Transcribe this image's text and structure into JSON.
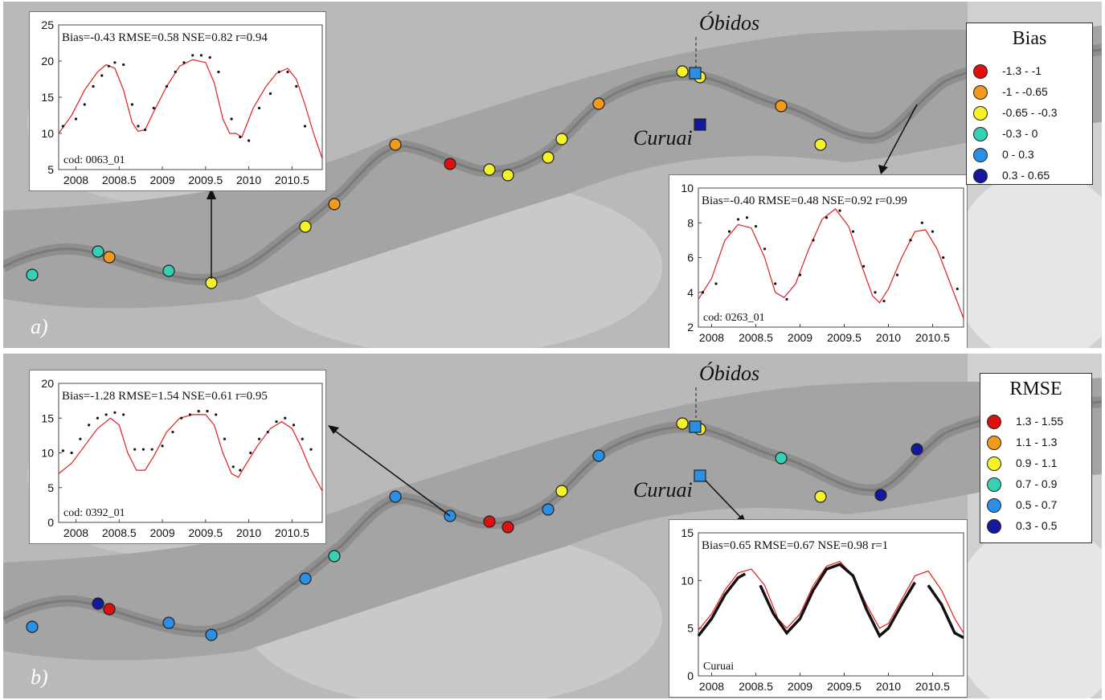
{
  "panels": [
    {
      "id": "a",
      "panel_label": "a)",
      "legend": {
        "title": "Bias",
        "classes": [
          {
            "label": "-1.3 - -1",
            "color": "#e01010"
          },
          {
            "label": "-1 - -0.65",
            "color": "#f39a1c"
          },
          {
            "label": "-0.65 - -0.3",
            "color": "#f5f22a"
          },
          {
            "label": "-0.3 - 0",
            "color": "#36d0b4"
          },
          {
            "label": "0 - 0.3",
            "color": "#2b8fe6"
          },
          {
            "label": "0.3 - 0.65",
            "color": "#14189c"
          }
        ]
      },
      "places": {
        "obidos": "Óbidos",
        "curuai": "Curuai"
      },
      "station_classes": [
        3,
        3,
        1,
        3,
        2,
        2,
        1,
        0,
        1,
        2,
        2,
        2,
        2,
        1,
        2,
        2,
        1,
        2
      ],
      "insets": [
        {
          "stats": "Bias=-0.43 RMSE=0.58 NSE=0.82 r=0.94",
          "code": "cod: 0063_01",
          "chart_data": {
            "type": "line",
            "xlim": [
              2007.8,
              2010.85
            ],
            "ylim": [
              5,
              25
            ],
            "xticks": [
              "2008",
              "2008.5",
              "2009",
              "2009.5",
              "2010",
              "2010.5"
            ],
            "yticks": [
              "5",
              "10",
              "15",
              "20",
              "25"
            ],
            "series": [
              {
                "kind": "line",
                "x": [
                  2007.8,
                  2007.95,
                  2008.1,
                  2008.25,
                  2008.35,
                  2008.45,
                  2008.55,
                  2008.65,
                  2008.72,
                  2008.8,
                  2008.9,
                  2009.05,
                  2009.2,
                  2009.35,
                  2009.5,
                  2009.6,
                  2009.7,
                  2009.78,
                  2009.85,
                  2009.92,
                  2010.05,
                  2010.2,
                  2010.32,
                  2010.45,
                  2010.55,
                  2010.65,
                  2010.75,
                  2010.85
                ],
                "y": [
                  10,
                  12.5,
                  16,
                  18.5,
                  19.5,
                  19,
                  16,
                  11.5,
                  10.3,
                  10.5,
                  13,
                  16.5,
                  19.3,
                  20.2,
                  19.8,
                  17,
                  12,
                  10,
                  10,
                  9.5,
                  13.5,
                  16.5,
                  18.3,
                  19,
                  17.5,
                  14,
                  10,
                  6.5
                ]
              },
              {
                "kind": "points",
                "x": [
                  2007.85,
                  2008.0,
                  2008.1,
                  2008.2,
                  2008.3,
                  2008.38,
                  2008.45,
                  2008.55,
                  2008.65,
                  2008.72,
                  2008.8,
                  2008.9,
                  2009.05,
                  2009.15,
                  2009.25,
                  2009.35,
                  2009.45,
                  2009.55,
                  2009.65,
                  2009.8,
                  2009.9,
                  2010.0,
                  2010.12,
                  2010.25,
                  2010.35,
                  2010.45,
                  2010.55,
                  2010.65
                ],
                "y": [
                  11,
                  12,
                  14,
                  16.5,
                  18,
                  19.3,
                  19.8,
                  19.5,
                  14,
                  11,
                  10.5,
                  13.5,
                  16.5,
                  18.5,
                  19.8,
                  20.8,
                  20.8,
                  20.5,
                  18.5,
                  12,
                  9.5,
                  9,
                  13.5,
                  15.5,
                  18.5,
                  18.5,
                  16.5,
                  11
                ]
              }
            ]
          }
        },
        {
          "stats": "Bias=-0.40 RMSE=0.48 NSE=0.92 r=0.99",
          "code": "cod: 0263_01",
          "chart_data": {
            "type": "line",
            "xlim": [
              2007.85,
              2010.85
            ],
            "ylim": [
              2,
              10
            ],
            "xticks": [
              "2008",
              "2008.5",
              "2009",
              "2009.5",
              "2010",
              "2010.5"
            ],
            "yticks": [
              "2",
              "4",
              "6",
              "8",
              "10"
            ],
            "series": [
              {
                "kind": "line",
                "x": [
                  2007.85,
                  2008.0,
                  2008.15,
                  2008.3,
                  2008.45,
                  2008.6,
                  2008.72,
                  2008.82,
                  2008.95,
                  2009.1,
                  2009.25,
                  2009.4,
                  2009.55,
                  2009.7,
                  2009.82,
                  2009.9,
                  2010.0,
                  2010.15,
                  2010.3,
                  2010.42,
                  2010.55,
                  2010.7,
                  2010.85
                ],
                "y": [
                  3.6,
                  4.8,
                  7,
                  7.9,
                  7.7,
                  6,
                  4,
                  3.7,
                  4.5,
                  6.5,
                  8.2,
                  8.8,
                  7.8,
                  5.5,
                  3.8,
                  3.4,
                  4.2,
                  6,
                  7.5,
                  7.6,
                  6.5,
                  4.5,
                  2.5
                ]
              },
              {
                "kind": "points",
                "x": [
                  2007.9,
                  2008.05,
                  2008.2,
                  2008.3,
                  2008.4,
                  2008.5,
                  2008.6,
                  2008.72,
                  2008.85,
                  2009.0,
                  2009.15,
                  2009.3,
                  2009.45,
                  2009.6,
                  2009.72,
                  2009.85,
                  2009.95,
                  2010.1,
                  2010.25,
                  2010.38,
                  2010.5,
                  2010.62,
                  2010.78
                ],
                "y": [
                  4,
                  4.5,
                  7.5,
                  8.2,
                  8.3,
                  7.8,
                  6.5,
                  4.5,
                  3.6,
                  5,
                  7,
                  8.3,
                  8.7,
                  7.5,
                  5.5,
                  4,
                  3.5,
                  5,
                  7,
                  8,
                  7.5,
                  6,
                  4.2
                ]
              }
            ]
          }
        }
      ]
    },
    {
      "id": "b",
      "panel_label": "b)",
      "legend": {
        "title": "RMSE",
        "classes": [
          {
            "label": "1.3 - 1.55",
            "color": "#e01010"
          },
          {
            "label": "1.1 - 1.3",
            "color": "#f39a1c"
          },
          {
            "label": "0.9 - 1.1",
            "color": "#f5f22a"
          },
          {
            "label": "0.7 - 0.9",
            "color": "#36d0b4"
          },
          {
            "label": "0.5 - 0.7",
            "color": "#2b8fe6"
          },
          {
            "label": "0.3 - 0.5",
            "color": "#14189c"
          }
        ]
      },
      "places": {
        "obidos": "Óbidos",
        "curuai": "Curuai"
      },
      "station_classes": [
        4,
        5,
        0,
        4,
        4,
        4,
        3,
        4,
        4,
        0,
        0,
        4,
        2,
        4,
        2,
        2,
        3,
        2,
        5,
        5
      ],
      "insets": [
        {
          "stats": "Bias=-1.28 RMSE=1.54 NSE=0.61 r=0.95",
          "code": "cod: 0392_01",
          "chart_data": {
            "type": "line",
            "xlim": [
              2007.8,
              2010.85
            ],
            "ylim": [
              0,
              20
            ],
            "xticks": [
              "2008",
              "2008.5",
              "2009",
              "2009.5",
              "2010",
              "2010.5"
            ],
            "yticks": [
              "0",
              "5",
              "10",
              "15",
              "20"
            ],
            "series": [
              {
                "kind": "line",
                "x": [
                  2007.8,
                  2007.95,
                  2008.1,
                  2008.25,
                  2008.4,
                  2008.5,
                  2008.6,
                  2008.7,
                  2008.8,
                  2008.9,
                  2009.05,
                  2009.2,
                  2009.35,
                  2009.5,
                  2009.6,
                  2009.7,
                  2009.8,
                  2009.88,
                  2009.95,
                  2010.1,
                  2010.25,
                  2010.38,
                  2010.5,
                  2010.6,
                  2010.7,
                  2010.85
                ],
                "y": [
                  7,
                  8.5,
                  11,
                  13.5,
                  15,
                  14,
                  10,
                  7.5,
                  7.5,
                  9.5,
                  13,
                  15,
                  15.5,
                  15.5,
                  14,
                  10,
                  7,
                  6.5,
                  8,
                  11,
                  13.5,
                  14.5,
                  13.5,
                  11,
                  8,
                  4.5
                ]
              },
              {
                "kind": "points",
                "x": [
                  2007.85,
                  2007.95,
                  2008.05,
                  2008.15,
                  2008.25,
                  2008.35,
                  2008.45,
                  2008.55,
                  2008.68,
                  2008.78,
                  2008.88,
                  2009.0,
                  2009.12,
                  2009.22,
                  2009.32,
                  2009.42,
                  2009.52,
                  2009.62,
                  2009.72,
                  2009.82,
                  2009.9,
                  2010.02,
                  2010.12,
                  2010.22,
                  2010.32,
                  2010.42,
                  2010.52,
                  2010.62,
                  2010.72
                ],
                "y": [
                  10.3,
                  10,
                  12,
                  14,
                  15,
                  15.5,
                  15.8,
                  15.5,
                  10.5,
                  10.5,
                  10.5,
                  11,
                  13,
                  15,
                  15.5,
                  16,
                  16,
                  15.5,
                  12,
                  8,
                  7.5,
                  10,
                  12,
                  13,
                  14.5,
                  15,
                  14,
                  12,
                  10.5
                ]
              }
            ]
          }
        },
        {
          "stats": "Bias=0.65 RMSE=0.67 NSE=0.98 r=1",
          "code": "Curuai",
          "chart_data": {
            "type": "line",
            "xlim": [
              2007.85,
              2010.85
            ],
            "ylim": [
              0,
              15
            ],
            "xticks": [
              "2008",
              "2008.5",
              "2009",
              "2009.5",
              "2010",
              "2010.5"
            ],
            "yticks": [
              "0",
              "5",
              "10",
              "15"
            ],
            "series": [
              {
                "kind": "line",
                "x": [
                  2007.85,
                  2008.0,
                  2008.15,
                  2008.3,
                  2008.45,
                  2008.6,
                  2008.75,
                  2008.85,
                  2009.0,
                  2009.15,
                  2009.3,
                  2009.45,
                  2009.6,
                  2009.75,
                  2009.9,
                  2010.0,
                  2010.15,
                  2010.3,
                  2010.45,
                  2010.6,
                  2010.75,
                  2010.85
                ],
                "y": [
                  4.8,
                  6.5,
                  9,
                  10.8,
                  11.2,
                  9.5,
                  6,
                  5,
                  6.5,
                  9.5,
                  11.5,
                  12,
                  10.5,
                  7.5,
                  5,
                  5.5,
                  8,
                  10.5,
                  11,
                  9,
                  6,
                  4.5
                ]
              },
              {
                "kind": "thick",
                "x": [
                  2007.85,
                  2008.0,
                  2008.15,
                  2008.3,
                  2008.38
                ],
                "y": [
                  4.2,
                  6,
                  8.5,
                  10.3,
                  10.7
                ]
              },
              {
                "kind": "thick",
                "x": [
                  2008.55,
                  2008.7,
                  2008.85,
                  2009.0,
                  2009.15,
                  2009.3,
                  2009.45,
                  2009.6,
                  2009.75,
                  2009.9,
                  2010.0,
                  2010.15,
                  2010.3
                ],
                "y": [
                  9.5,
                  6.5,
                  4.5,
                  6,
                  9,
                  11.2,
                  11.7,
                  10.5,
                  7,
                  4.2,
                  5,
                  7.5,
                  9.8
                ]
              },
              {
                "kind": "thick",
                "x": [
                  2010.45,
                  2010.6,
                  2010.75,
                  2010.85
                ],
                "y": [
                  9.5,
                  7.5,
                  4.5,
                  4
                ]
              }
            ]
          }
        }
      ]
    }
  ]
}
